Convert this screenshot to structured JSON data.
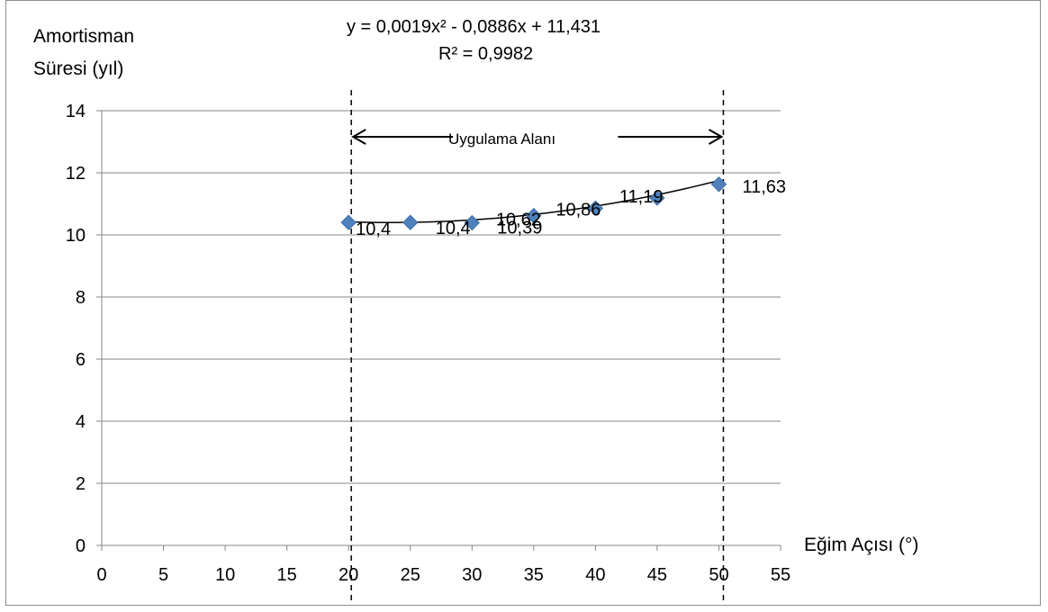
{
  "chart_data": {
    "type": "scatter",
    "ylabel_lines": [
      "Amortisman",
      "Süresi (yıl)"
    ],
    "xlabel": "Eğim Açısı (°)",
    "trendline": {
      "type": "polynomial",
      "order": 2,
      "equation": "y = 0,0019x² - 0,0886x + 11,431",
      "r2_label": "R² = 0,9982",
      "coefficients": [
        0.0019,
        -0.0886,
        11.431
      ]
    },
    "xlim": [
      0,
      55
    ],
    "ylim": [
      0,
      14
    ],
    "xticks": [
      0,
      5,
      10,
      15,
      20,
      25,
      30,
      35,
      40,
      45,
      50,
      55
    ],
    "yticks": [
      0,
      2,
      4,
      6,
      8,
      10,
      12,
      14
    ],
    "xtick_labels": [
      "0",
      "5",
      "10",
      "15",
      "20",
      "25",
      "30",
      "35",
      "40",
      "45",
      "50",
      "55"
    ],
    "ytick_labels": [
      "0",
      "2",
      "4",
      "6",
      "8",
      "10",
      "12",
      "14"
    ],
    "grid": "horizontal",
    "series": [
      {
        "marker": "diamond",
        "color": "#4f81bd",
        "x": [
          20,
          25,
          30,
          35,
          40,
          45,
          50
        ],
        "y": [
          10.4,
          10.4,
          10.39,
          10.62,
          10.86,
          11.19,
          11.63
        ],
        "labels": [
          "10,4",
          "10,4",
          "10,39",
          "10,62",
          "10,86",
          "11,19",
          "11,63"
        ]
      }
    ],
    "application_range": {
      "label": "Uygulama Alanı",
      "x_from": 20,
      "x_to": 50
    }
  }
}
